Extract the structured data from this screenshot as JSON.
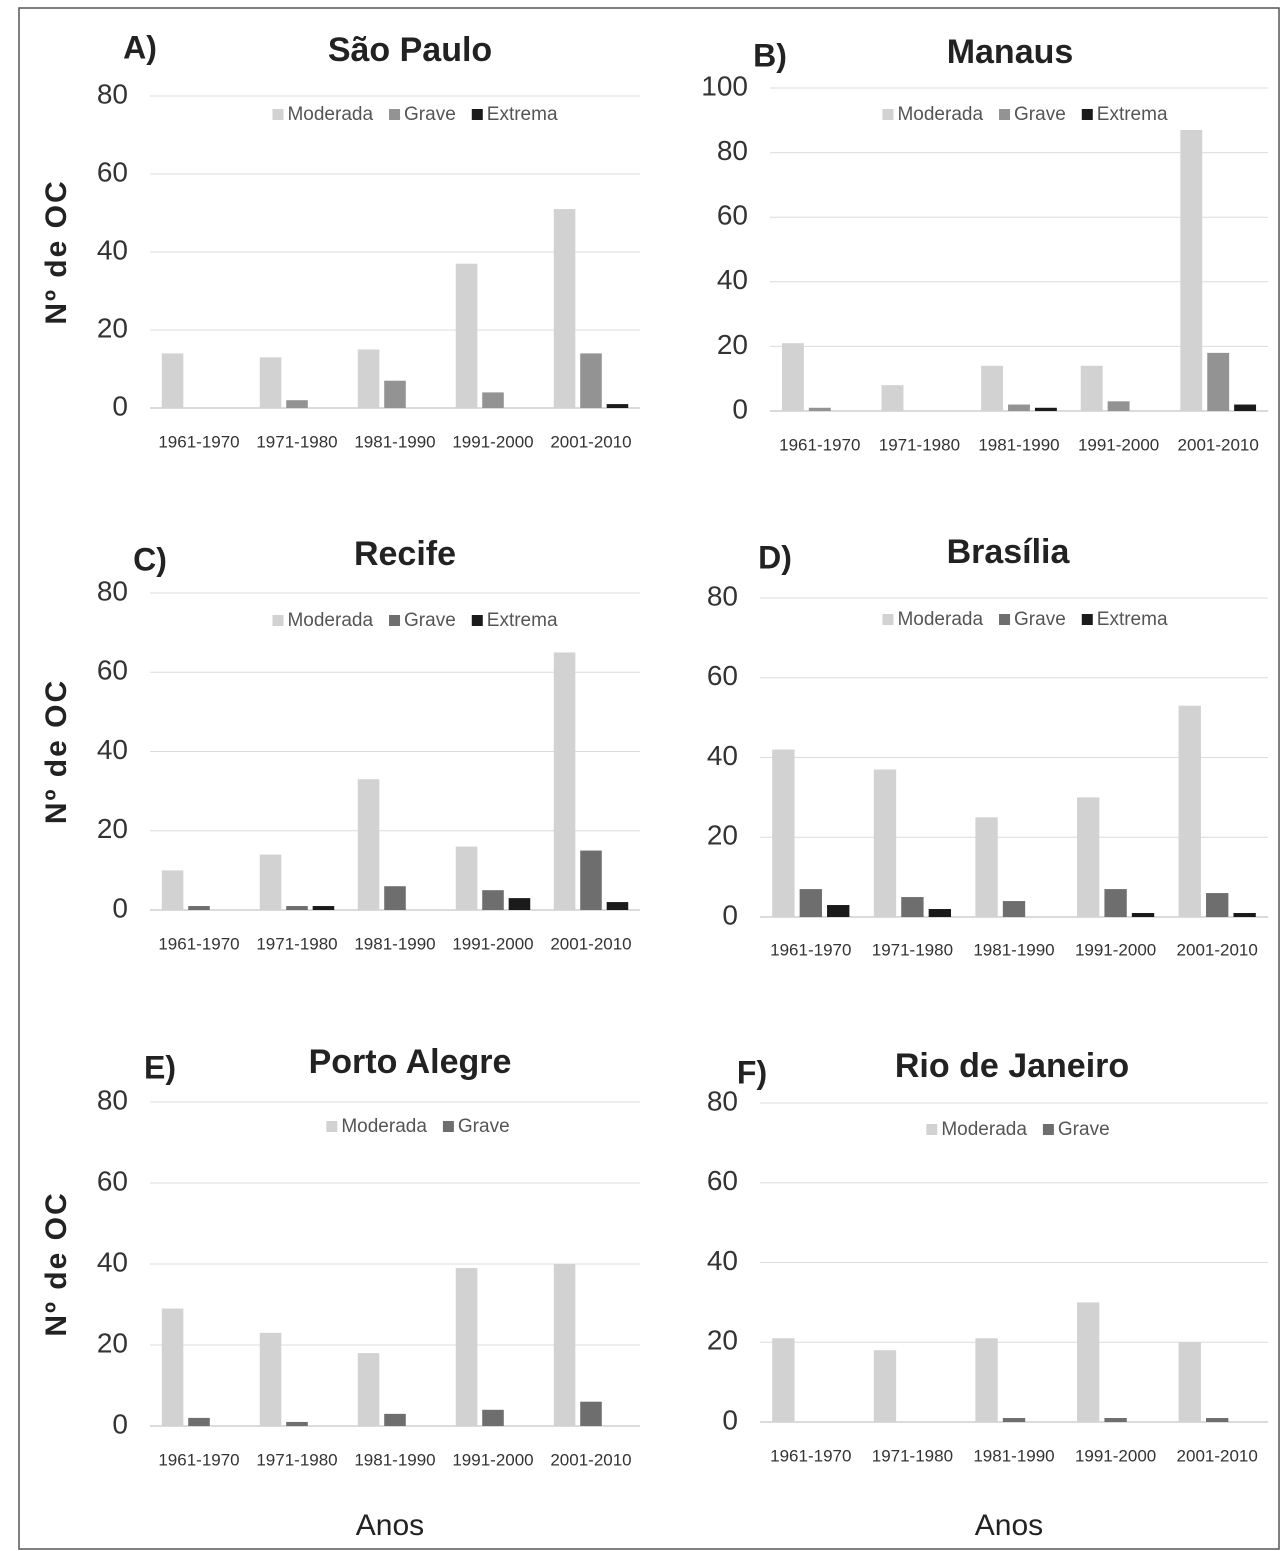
{
  "chart_data": [
    {
      "type": "bar",
      "panel": "A)",
      "title": "São Paulo",
      "ylabel": "Nº de OC",
      "categories": [
        "1961-1970",
        "1971-1980",
        "1981-1990",
        "1991-2000",
        "2001-2010"
      ],
      "series": [
        {
          "name": "Moderada",
          "color": "#d2d2d2",
          "values": [
            14,
            13,
            15,
            37,
            51
          ]
        },
        {
          "name": "Grave",
          "color": "#939393",
          "values": [
            0,
            2,
            7,
            4,
            14
          ]
        },
        {
          "name": "Extrema",
          "color": "#1a1a1a",
          "values": [
            0,
            0,
            0,
            0,
            1
          ]
        }
      ],
      "ylim": [
        0,
        80
      ],
      "yticks": [
        0,
        20,
        40,
        60,
        80
      ],
      "grid": true
    },
    {
      "type": "bar",
      "panel": "B)",
      "title": "Manaus",
      "categories": [
        "1961-1970",
        "1971-1980",
        "1981-1990",
        "1991-2000",
        "2001-2010"
      ],
      "series": [
        {
          "name": "Moderada",
          "color": "#d2d2d2",
          "values": [
            21,
            8,
            14,
            14,
            87
          ]
        },
        {
          "name": "Grave",
          "color": "#939393",
          "values": [
            1,
            0,
            2,
            3,
            18
          ]
        },
        {
          "name": "Extrema",
          "color": "#1a1a1a",
          "values": [
            0,
            0,
            1,
            0,
            2
          ]
        }
      ],
      "ylim": [
        0,
        100
      ],
      "yticks": [
        0,
        20,
        40,
        60,
        80,
        100
      ],
      "grid": true
    },
    {
      "type": "bar",
      "panel": "C)",
      "title": "Recife",
      "ylabel": "Nº de OC",
      "categories": [
        "1961-1970",
        "1971-1980",
        "1981-1990",
        "1991-2000",
        "2001-2010"
      ],
      "series": [
        {
          "name": "Moderada",
          "color": "#d2d2d2",
          "values": [
            10,
            14,
            33,
            16,
            65
          ]
        },
        {
          "name": "Grave",
          "color": "#6e6e6e",
          "values": [
            1,
            1,
            6,
            5,
            15
          ]
        },
        {
          "name": "Extrema",
          "color": "#1a1a1a",
          "values": [
            0,
            1,
            0,
            3,
            2
          ]
        }
      ],
      "ylim": [
        0,
        80
      ],
      "yticks": [
        0,
        20,
        40,
        60,
        80
      ],
      "grid": true
    },
    {
      "type": "bar",
      "panel": "D)",
      "title": "Brasília",
      "categories": [
        "1961-1970",
        "1971-1980",
        "1981-1990",
        "1991-2000",
        "2001-2010"
      ],
      "series": [
        {
          "name": "Moderada",
          "color": "#d2d2d2",
          "values": [
            42,
            37,
            25,
            30,
            53
          ]
        },
        {
          "name": "Grave",
          "color": "#6e6e6e",
          "values": [
            7,
            5,
            4,
            7,
            6
          ]
        },
        {
          "name": "Extrema",
          "color": "#1a1a1a",
          "values": [
            3,
            2,
            0,
            1,
            1
          ]
        }
      ],
      "ylim": [
        0,
        80
      ],
      "yticks": [
        0,
        20,
        40,
        60,
        80
      ],
      "grid": true
    },
    {
      "type": "bar",
      "panel": "E)",
      "title": "Porto Alegre",
      "ylabel": "Nº de OC",
      "xlabel": "Anos",
      "categories": [
        "1961-1970",
        "1971-1980",
        "1981-1990",
        "1991-2000",
        "2001-2010"
      ],
      "series": [
        {
          "name": "Moderada",
          "color": "#d2d2d2",
          "values": [
            29,
            23,
            18,
            39,
            40
          ]
        },
        {
          "name": "Grave",
          "color": "#6e6e6e",
          "values": [
            2,
            1,
            3,
            4,
            6
          ]
        }
      ],
      "ylim": [
        0,
        80
      ],
      "yticks": [
        0,
        20,
        40,
        60,
        80
      ],
      "grid": true
    },
    {
      "type": "bar",
      "panel": "F)",
      "title": "Rio de Janeiro",
      "xlabel": "Anos",
      "categories": [
        "1961-1970",
        "1971-1980",
        "1981-1990",
        "1991-2000",
        "2001-2010"
      ],
      "series": [
        {
          "name": "Moderada",
          "color": "#d2d2d2",
          "values": [
            21,
            18,
            21,
            30,
            20
          ]
        },
        {
          "name": "Grave",
          "color": "#6e6e6e",
          "values": [
            0,
            0,
            1,
            1,
            1
          ]
        }
      ],
      "ylim": [
        0,
        80
      ],
      "yticks": [
        0,
        20,
        40,
        60,
        80
      ],
      "grid": true
    }
  ]
}
